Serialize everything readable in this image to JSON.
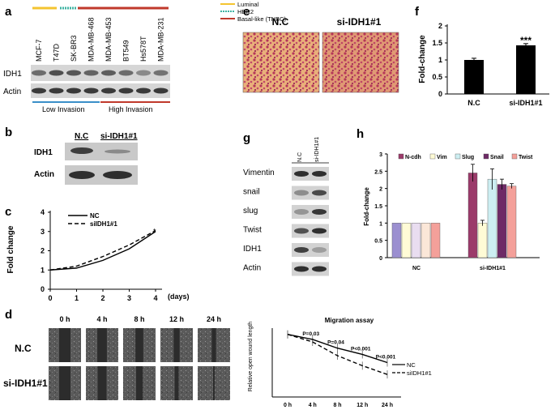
{
  "panel_a": {
    "label": "a",
    "legend": [
      {
        "text": "Luminal",
        "color": "#f4c430"
      },
      {
        "text": "HER2",
        "color": "#3fb3a3"
      },
      {
        "text": "Basal-like (TNBC)",
        "color": "#c0392b"
      }
    ],
    "cell_lines": [
      "MCF-7",
      "T47D",
      "SK-BR3",
      "MDA-MB-468",
      "MDA-MB-453",
      "BT549",
      "Hs578T",
      "MDA-MB-231"
    ],
    "row_labels": [
      "IDH1",
      "Actin"
    ],
    "invasion_groups": [
      {
        "text": "Low Invasion",
        "color": "#3a8fc8"
      },
      {
        "text": "High Invasion",
        "color": "#c0392b"
      }
    ]
  },
  "panel_b": {
    "label": "b",
    "columns": [
      "N.C",
      "si-IDH1#1"
    ],
    "row_labels": [
      "IDH1",
      "Actin"
    ]
  },
  "panel_c": {
    "label": "c",
    "chart_data": {
      "type": "line",
      "x": [
        0,
        1,
        2,
        3,
        4
      ],
      "series": [
        {
          "name": "NC",
          "values": [
            1,
            1.1,
            1.5,
            2.1,
            3.0
          ],
          "style": "solid"
        },
        {
          "name": "siIDH1#1",
          "values": [
            1,
            1.2,
            1.7,
            2.3,
            3.05
          ],
          "style": "dashed"
        }
      ],
      "xticks": [
        "0",
        "1",
        "2",
        "3",
        "4"
      ],
      "yticks": [
        "0",
        "1",
        "2",
        "3",
        "4"
      ],
      "xlabel": "(days)",
      "ylabel": "Fold change",
      "xlim": [
        0,
        4
      ],
      "ylim": [
        0,
        4
      ]
    }
  },
  "panel_d": {
    "label": "d",
    "timepoints": [
      "0 h",
      "4 h",
      "8 h",
      "12 h",
      "24 h"
    ],
    "row_labels": [
      "N.C",
      "si-IDH1#1"
    ],
    "chart_data": {
      "type": "line",
      "title": "Migration assay",
      "ylabel": "Relative open wound length",
      "categories": [
        "0 h",
        "4 h",
        "8 h",
        "12 h",
        "24 h"
      ],
      "series": [
        {
          "name": "NC",
          "values": [
            1.0,
            0.92,
            0.78,
            0.68,
            0.55
          ],
          "style": "solid"
        },
        {
          "name": "siIDH1#1",
          "values": [
            1.0,
            0.88,
            0.66,
            0.5,
            0.36
          ],
          "style": "dashed"
        }
      ],
      "annotations": [
        "P=0.03",
        "P=0.04",
        "P<0.001",
        "P<0.001"
      ],
      "ylim": [
        0,
        1.1
      ]
    }
  },
  "panel_e": {
    "label": "e",
    "columns": [
      "N.C",
      "si-IDH1#1"
    ]
  },
  "panel_f": {
    "label": "f",
    "significance": "***",
    "chart_data": {
      "type": "bar",
      "categories": [
        "N.C",
        "si-IDH1#1"
      ],
      "values": [
        1.0,
        1.43
      ],
      "errors": [
        0.05,
        0.05
      ],
      "ylabel": "Fold-change",
      "yticks": [
        "0",
        "0.5",
        "1",
        "1.5",
        "2"
      ],
      "ylim": [
        0,
        2
      ]
    }
  },
  "panel_g": {
    "label": "g",
    "columns": [
      "N.C",
      "si-IDH1#1"
    ],
    "row_labels": [
      "Vimentin",
      "snail",
      "slug",
      "Twist",
      "IDH1",
      "Actin"
    ]
  },
  "panel_h": {
    "label": "h",
    "chart_data": {
      "type": "bar",
      "categories": [
        "NC",
        "si-IDH1#1"
      ],
      "series": [
        {
          "name": "N-cdh",
          "color": "#9b3a6a",
          "values": [
            1,
            2.45
          ],
          "errors": [
            0,
            0.25
          ]
        },
        {
          "name": "Vim",
          "color": "#fffbd6",
          "values": [
            1,
            1.0
          ],
          "errors": [
            0,
            0.08
          ]
        },
        {
          "name": "Slug",
          "color": "#cdeef2",
          "values": [
            1,
            2.27
          ],
          "errors": [
            0,
            0.3
          ]
        },
        {
          "name": "Snail",
          "color": "#6e2a66",
          "values": [
            1,
            2.12
          ],
          "errors": [
            0,
            0.15
          ]
        },
        {
          "name": "Twist",
          "color": "#f4a09a",
          "values": [
            1,
            2.07
          ],
          "errors": [
            0,
            0.07
          ]
        }
      ],
      "nc_colors": [
        "#9b8fd0",
        "#fffbd6",
        "#e9ddf0",
        "#fbe7d8",
        "#f4a09a"
      ],
      "ylabel": "Fold-change",
      "yticks": [
        "0",
        "0.5",
        "1",
        "1.5",
        "2",
        "2.5",
        "3"
      ],
      "ylim": [
        0,
        3
      ]
    }
  }
}
